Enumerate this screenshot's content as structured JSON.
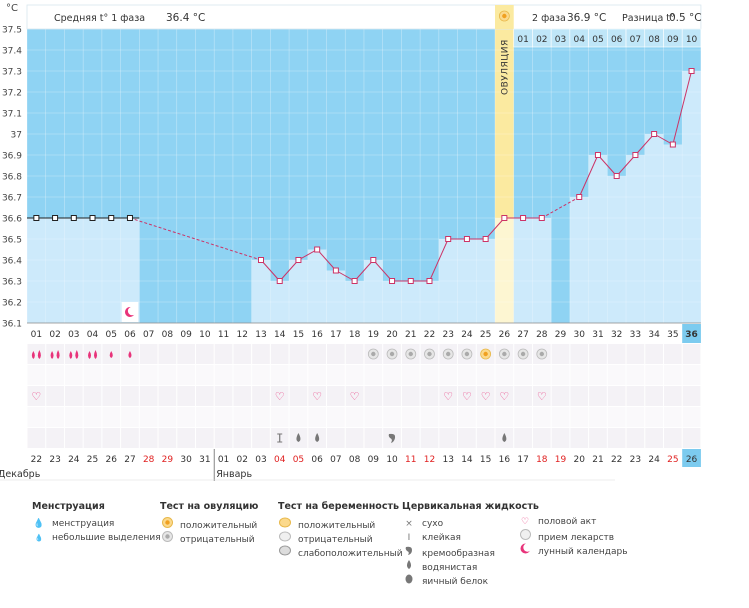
{
  "header": {
    "unit": "°C",
    "phase1_label": "Средняя t° 1 фаза",
    "phase1_value": "36.4 °C",
    "phase2_label": "2 фаза",
    "phase2_value": "36.9 °C",
    "diff_label": "Разница t°",
    "diff_value": "0.5 °C",
    "ovulation_label": "ОВУЛЯЦИЯ"
  },
  "chart_data": {
    "type": "line",
    "ylim": [
      36.1,
      37.5
    ],
    "yticks": [
      "37.5",
      "37.4",
      "37.3",
      "37.2",
      "37.1",
      "37",
      "36.9",
      "36.8",
      "36.7",
      "36.6",
      "36.5",
      "36.4",
      "36.3",
      "36.2",
      "36.1"
    ],
    "cycle_days": [
      "01",
      "02",
      "03",
      "04",
      "05",
      "06",
      "07",
      "08",
      "09",
      "10",
      "11",
      "12",
      "13",
      "14",
      "15",
      "16",
      "17",
      "18",
      "19",
      "20",
      "21",
      "22",
      "23",
      "24",
      "25",
      "26",
      "27",
      "28",
      "29",
      "30",
      "31",
      "32",
      "33",
      "34",
      "35",
      "36"
    ],
    "post_ovulation_days": [
      "01",
      "02",
      "03",
      "04",
      "05",
      "06",
      "07",
      "08",
      "09",
      "10"
    ],
    "dates": [
      "22",
      "23",
      "24",
      "25",
      "26",
      "27",
      "28",
      "29",
      "30",
      "31",
      "01",
      "02",
      "03",
      "04",
      "05",
      "06",
      "07",
      "08",
      "09",
      "10",
      "11",
      "12",
      "13",
      "14",
      "15",
      "16",
      "17",
      "18",
      "19",
      "20",
      "21",
      "22",
      "23",
      "24",
      "25",
      "26"
    ],
    "red_date_indices": [
      6,
      7,
      13,
      14,
      20,
      21,
      27,
      28,
      34
    ],
    "month_labels": [
      {
        "text": "Декабрь",
        "index": 0
      },
      {
        "text": "Январь",
        "index": 10
      }
    ],
    "temperatures": [
      36.6,
      36.6,
      36.6,
      36.6,
      36.6,
      36.6,
      null,
      null,
      null,
      null,
      null,
      null,
      36.4,
      36.3,
      36.4,
      36.45,
      36.35,
      36.3,
      36.4,
      36.3,
      36.3,
      36.3,
      36.5,
      36.5,
      36.5,
      36.6,
      36.6,
      36.6,
      null,
      36.7,
      36.9,
      36.8,
      36.9,
      37.0,
      36.95,
      37.3
    ],
    "black_marker_days": [
      1,
      2,
      3,
      4,
      5,
      6
    ],
    "ovulation_day": 26,
    "today_day": 36,
    "moon_day": 6,
    "menstruation": [
      {
        "day": 1,
        "type": "heavy"
      },
      {
        "day": 2,
        "type": "heavy"
      },
      {
        "day": 3,
        "type": "heavy"
      },
      {
        "day": 4,
        "type": "heavy"
      },
      {
        "day": 5,
        "type": "light"
      },
      {
        "day": 6,
        "type": "light"
      }
    ],
    "ovulation_tests": [
      {
        "day": 19,
        "type": "negative"
      },
      {
        "day": 20,
        "type": "negative"
      },
      {
        "day": 21,
        "type": "negative"
      },
      {
        "day": 22,
        "type": "negative"
      },
      {
        "day": 23,
        "type": "negative"
      },
      {
        "day": 24,
        "type": "negative"
      },
      {
        "day": 25,
        "type": "positive"
      },
      {
        "day": 26,
        "type": "negative"
      },
      {
        "day": 27,
        "type": "negative"
      },
      {
        "day": 28,
        "type": "negative"
      }
    ],
    "sex_days": [
      1,
      14,
      16,
      18,
      23,
      24,
      25,
      26,
      28
    ],
    "fluid": [
      {
        "day": 14,
        "type": "sticky"
      },
      {
        "day": 15,
        "type": "watery"
      },
      {
        "day": 16,
        "type": "watery"
      },
      {
        "day": 20,
        "type": "creamy"
      },
      {
        "day": 26,
        "type": "watery"
      }
    ]
  },
  "legend": {
    "menstruation": {
      "title": "Менструация",
      "items": [
        "менструация",
        "небольшие выделения"
      ]
    },
    "ovulation_test": {
      "title": "Тест на овуляцию",
      "items": [
        "положительный",
        "отрицательный"
      ]
    },
    "pregnancy_test": {
      "title": "Тест на беременность",
      "items": [
        "положительный",
        "отрицательный",
        "слабоположительный"
      ]
    },
    "cervical": {
      "title": "Цервикальная жидкость",
      "items": [
        "сухо",
        "клейкая",
        "кремообразная",
        "водянистая",
        "яичный белок"
      ]
    },
    "other": {
      "items": [
        "половой акт",
        "прием лекарств",
        "лунный календарь"
      ]
    }
  },
  "colors": {
    "bg_sky": "#8fd3f3",
    "bar": "#cdeafb",
    "line": "#cc3366",
    "ovulation": "#fbeaa0",
    "today": "#7ccbef",
    "red_text": "#e02020"
  }
}
